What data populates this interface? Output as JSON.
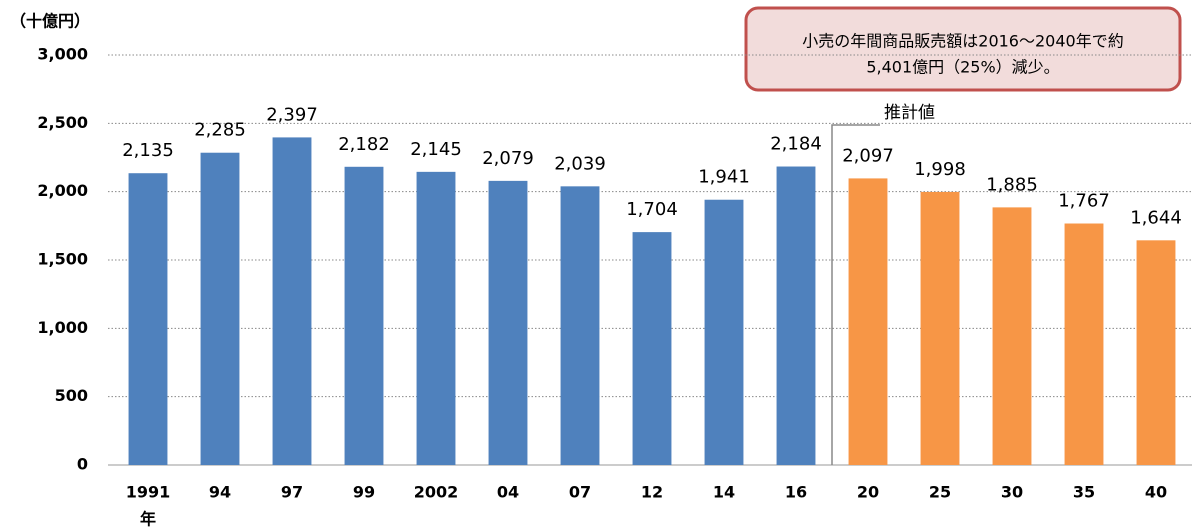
{
  "chart_data": {
    "type": "bar",
    "y_unit": "（十億円）",
    "x_unit": "年",
    "categories": [
      "1991",
      "94",
      "97",
      "99",
      "2002",
      "04",
      "07",
      "12",
      "14",
      "16",
      "20",
      "25",
      "30",
      "35",
      "40"
    ],
    "values": [
      2135,
      2285,
      2397,
      2182,
      2145,
      2079,
      2039,
      1704,
      1941,
      2184,
      2097,
      1998,
      1885,
      1767,
      1644
    ],
    "value_labels": [
      "2,135",
      "2,285",
      "2,397",
      "2,182",
      "2,145",
      "2,079",
      "2,039",
      "1,704",
      "1,941",
      "2,184",
      "2,097",
      "1,998",
      "1,885",
      "1,767",
      "1,644"
    ],
    "colors": [
      "#4f81bd",
      "#4f81bd",
      "#4f81bd",
      "#4f81bd",
      "#4f81bd",
      "#4f81bd",
      "#4f81bd",
      "#4f81bd",
      "#4f81bd",
      "#4f81bd",
      "#f79646",
      "#f79646",
      "#f79646",
      "#f79646",
      "#f79646"
    ],
    "ylim": [
      0,
      3000
    ],
    "yticks": [
      0,
      500,
      {
        "value": 1000,
        "label": "1,000"
      },
      {
        "value": 1500,
        "label": "1,500"
      },
      {
        "value": 2000,
        "label": "2,000"
      },
      {
        "value": 2500,
        "label": "2,500"
      },
      {
        "value": 3000,
        "label": "3,000"
      }
    ],
    "grid": true,
    "estimate_label": "推計値",
    "annotation": [
      "小売の年間商品販売額は2016～2040年で約",
      "5,401億円（25%）減少。"
    ]
  }
}
